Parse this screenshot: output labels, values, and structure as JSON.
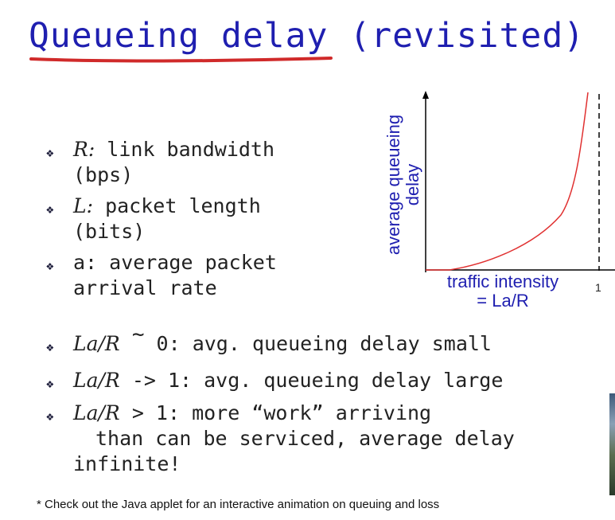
{
  "title": "Queueing delay (revisited)",
  "bullets": [
    {
      "var": "R:",
      "text": " link bandwidth",
      "cont": "(bps)"
    },
    {
      "var": "L:",
      "text": " packet length",
      "cont": "(bits)"
    },
    {
      "text": "a: average packet",
      "cont": "arrival rate"
    }
  ],
  "lower": [
    {
      "var": "La/R",
      "tilde": "~",
      "text": " 0: avg. queueing delay small"
    },
    {
      "var": "La/R",
      "text": " -> 1: avg. queueing delay large"
    },
    {
      "var": "La/R",
      "text": " > 1: more “work” arriving",
      "cont": "than can be serviced, average delay",
      "cont2": "infinite!"
    }
  ],
  "graph": {
    "ylabel_line1": "average queueing",
    "ylabel_line2": "delay",
    "xlabel_line1": "traffic intensity",
    "xlabel_line2": "= La/R",
    "tick_one": "1"
  },
  "footnote": "* Check out the Java applet for an interactive animation on queuing and loss",
  "colors": {
    "title": "#1f1fb0",
    "underline": "#d02a2a",
    "curve": "#e03030",
    "bullet": "#1c1c3a"
  },
  "icons": {
    "bullet": "diamond-bullet-icon"
  }
}
